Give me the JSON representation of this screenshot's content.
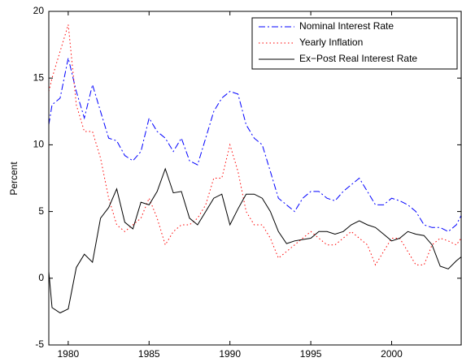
{
  "chart_data": {
    "type": "line",
    "ylabel": "Percent",
    "x": [
      1978.8,
      1979,
      1979.5,
      1980,
      1980.5,
      1981,
      1981.5,
      1982,
      1982.5,
      1983,
      1983.5,
      1984,
      1984.5,
      1985,
      1985.5,
      1986,
      1986.5,
      1987,
      1987.5,
      1988,
      1988.5,
      1989,
      1989.5,
      1990,
      1990.5,
      1991,
      1991.5,
      1992,
      1992.5,
      1993,
      1993.5,
      1994,
      1994.5,
      1995,
      1995.5,
      1996,
      1996.5,
      1997,
      1997.5,
      1998,
      1998.5,
      1999,
      1999.5,
      2000,
      2000.5,
      2001,
      2001.5,
      2002,
      2002.5,
      2003,
      2003.5,
      2004,
      2004.3
    ],
    "series": [
      {
        "name": "Nominal Interest Rate",
        "color": "#0000ff",
        "linestyle": "dashdot",
        "values": [
          11.5,
          13,
          13.5,
          16.5,
          14,
          12,
          14.5,
          12.5,
          10.5,
          10.3,
          9.2,
          8.8,
          9.5,
          12,
          11,
          10.5,
          9.5,
          10.5,
          8.8,
          8.5,
          10.5,
          12.5,
          13.5,
          14,
          13.8,
          11.5,
          10.5,
          10,
          8,
          6,
          5.5,
          5,
          6,
          6.5,
          6.5,
          6,
          5.8,
          6.5,
          7,
          7.5,
          6.5,
          5.5,
          5.5,
          6,
          5.8,
          5.5,
          5,
          4,
          3.8,
          3.8,
          3.5,
          4,
          4.7
        ]
      },
      {
        "name": "Yearly Inflation",
        "color": "#ff0000",
        "linestyle": "dotted",
        "values": [
          14,
          15,
          17,
          19,
          13,
          11,
          11,
          9,
          6,
          4,
          3.5,
          4,
          4.5,
          6,
          4.5,
          2.5,
          3.5,
          4,
          4,
          4.5,
          5.5,
          7.5,
          7.5,
          10,
          8,
          5,
          4,
          4,
          3,
          1.5,
          2,
          2.5,
          3,
          3.5,
          3,
          2.5,
          2.5,
          3,
          3.5,
          3,
          2.5,
          1,
          2,
          3,
          3,
          2,
          1,
          1,
          2.5,
          3,
          2.8,
          2.5,
          3
        ]
      },
      {
        "name": "Ex−Post Real Interest Rate",
        "color": "#000000",
        "linestyle": "solid",
        "values": [
          0.5,
          -2.2,
          -2.6,
          -2.3,
          0.8,
          1.8,
          1.2,
          4.5,
          5.3,
          6.7,
          4.2,
          3.7,
          5.7,
          5.5,
          6.5,
          8.2,
          6.4,
          6.5,
          4.5,
          4,
          5,
          6,
          6.3,
          4,
          5.2,
          6.3,
          6.3,
          6,
          5,
          3.5,
          2.6,
          2.8,
          2.9,
          3,
          3.5,
          3.5,
          3.3,
          3.5,
          4,
          4.3,
          4,
          3.8,
          3.3,
          2.8,
          3,
          3.5,
          3.3,
          3.2,
          2.5,
          0.9,
          0.7,
          1.3,
          1.6
        ]
      }
    ],
    "xlim": [
      1978.8,
      2004.3
    ],
    "xticks": [
      1980,
      1985,
      1990,
      1995,
      2000
    ],
    "ylim": [
      -5,
      20
    ],
    "yticks": [
      -5,
      0,
      5,
      10,
      15,
      20
    ],
    "grid": false,
    "legend": "upper right"
  }
}
